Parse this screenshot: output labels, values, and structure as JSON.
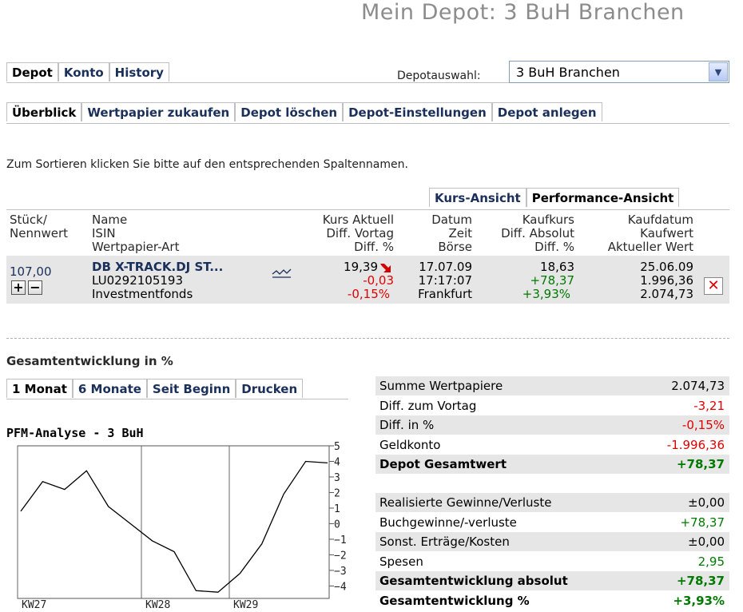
{
  "page": {
    "title": "Mein Depot: 3 BuH Branchen"
  },
  "main_tabs": [
    "Depot",
    "Konto",
    "History"
  ],
  "depotauswahl": {
    "label": "Depotauswahl:",
    "selected": "3 BuH Branchen"
  },
  "sub_tabs": [
    "Überblick",
    "Wertpapier zukaufen",
    "Depot löschen",
    "Depot-Einstellungen",
    "Depot anlegen"
  ],
  "sort_hint": "Zum Sortieren klicken Sie bitte auf den entsprechenden Spaltennamen.",
  "view_tabs": [
    "Kurs-Ansicht",
    "Performance-Ansicht"
  ],
  "table": {
    "headers": {
      "stueck": [
        "Stück/",
        "Nennwert"
      ],
      "name": [
        "Name",
        "ISIN",
        "Wertpapier-Art"
      ],
      "kurs": [
        "Kurs Aktuell",
        "Diff. Vortag",
        "Diff. %"
      ],
      "datum": [
        "Datum",
        "Zeit",
        "Börse"
      ],
      "kaufkurs": [
        "Kaufkurs",
        "Diff. Absolut",
        "Diff. %"
      ],
      "kaufdatum": [
        "Kaufdatum",
        "Kaufwert",
        "Aktueller Wert"
      ]
    },
    "row": {
      "stueck": "107,00",
      "plus": "+",
      "minus": "−",
      "name": "DB X-TRACK.DJ ST...",
      "isin": "LU0292105193",
      "art": "Investmentfonds",
      "kurs": "19,39",
      "diff_vortag": "-0,03",
      "diff_pct": "-0,15%",
      "datum": "17.07.09",
      "zeit": "17:17:07",
      "boerse": "Frankfurt",
      "kaufkurs": "18,63",
      "diff_absolut": "+78,37",
      "diff_pct2": "+3,93%",
      "kaufdatum": "25.06.09",
      "kaufwert": "1.996,36",
      "aktueller_wert": "2.074,73",
      "delete": "✕"
    }
  },
  "gesamt": {
    "heading": "Gesamtentwicklung in %",
    "tabs": [
      "1 Monat",
      "6 Monate",
      "Seit Beginn",
      "Drucken"
    ]
  },
  "chart_data": {
    "type": "line",
    "title": "PFM-Analyse - 3 BuH",
    "xlabel": "",
    "ylabel": "",
    "x_tick_labels": [
      "KW27",
      "KW28",
      "KW29"
    ],
    "y_ticks": [
      5,
      4,
      3,
      2,
      1,
      0,
      -1,
      -2,
      -3,
      -4
    ],
    "ylim": [
      -4.8,
      5
    ],
    "grid": true,
    "series": [
      {
        "values": [
          0.8,
          2.7,
          2.2,
          3.4,
          1.1,
          0.0,
          -1.1,
          -1.8,
          -4.3,
          -4.4,
          -3.2,
          -1.3,
          1.9,
          4.0,
          3.9
        ]
      }
    ]
  },
  "summary": {
    "group1": [
      {
        "label": "Summe Wertpapiere",
        "value": "2.074,73",
        "color": "#000000",
        "bold": false
      },
      {
        "label": "Diff. zum Vortag",
        "value": "-3,21",
        "color": "#e00000",
        "bold": false
      },
      {
        "label": "Diff. in %",
        "value": "-0,15%",
        "color": "#e00000",
        "bold": false
      },
      {
        "label": "Geldkonto",
        "value": "-1.996,36",
        "color": "#e00000",
        "bold": false
      },
      {
        "label": "Depot Gesamtwert",
        "value": "+78,37",
        "color": "#007a00",
        "bold": true
      }
    ],
    "group2": [
      {
        "label": "Realisierte Gewinne/Verluste",
        "value": "±0,00",
        "color": "#000000",
        "bold": false
      },
      {
        "label": "Buchgewinne/-verluste",
        "value": "+78,37",
        "color": "#007a00",
        "bold": false
      },
      {
        "label": "Sonst. Erträge/Kosten",
        "value": "±0,00",
        "color": "#000000",
        "bold": false
      },
      {
        "label": "Spesen",
        "value": "2,95",
        "color": "#007a00",
        "bold": false
      },
      {
        "label": "Gesamtentwicklung absolut",
        "value": "+78,37",
        "color": "#007a00",
        "bold": true
      },
      {
        "label": "Gesamtentwicklung %",
        "value": "+3,93%",
        "color": "#007a00",
        "bold": true
      }
    ]
  },
  "colors": {
    "navy": "#1a2f5a",
    "positive": "#007a00",
    "negative": "#e00000",
    "shade": "#e6e6e6"
  },
  "icons": [
    "chart-trend-icon",
    "price-down-arrow-icon",
    "chevron-down-icon",
    "delete-icon"
  ]
}
